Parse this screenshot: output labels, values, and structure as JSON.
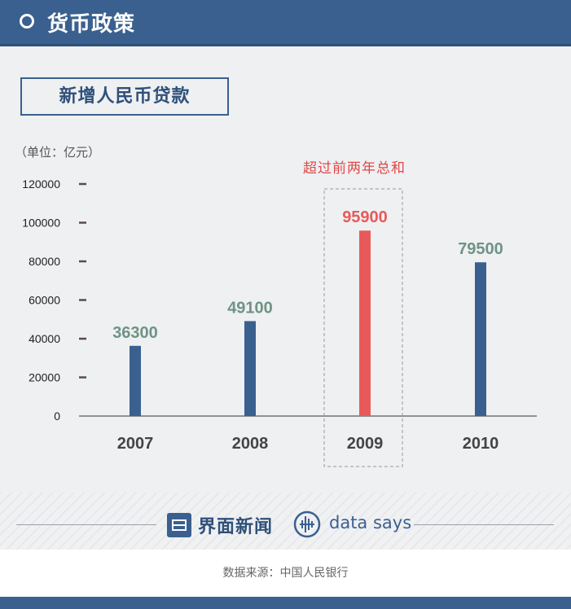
{
  "header": {
    "title": "货币政策"
  },
  "chart_data": {
    "type": "bar",
    "title": "新增人民币贷款",
    "unit": "（单位：亿元）",
    "categories": [
      "2007",
      "2008",
      "2009",
      "2010"
    ],
    "values": [
      36300,
      49100,
      95900,
      79500
    ],
    "value_labels": [
      "36300",
      "49100",
      "95900",
      "79500"
    ],
    "ylim": [
      0,
      120000
    ],
    "yticks": [
      "0",
      "20000",
      "40000",
      "60000",
      "80000",
      "100000",
      "120000"
    ],
    "highlight_category": "2009",
    "annotation": "超过前两年总和",
    "colors": {
      "bar": "#3a6090",
      "highlight": "#e85a5a",
      "label": "#6f9384",
      "highlight_label": "#e85a5a",
      "header": "#3a6090"
    },
    "grid": false,
    "legend": "none"
  },
  "footer": {
    "logo_jiemian": "界面新闻",
    "logo_datasays": "data says",
    "source": "数据来源：中国人民银行"
  },
  "icons": [
    "ring-icon",
    "jiemian-logo-icon",
    "datasays-logo-icon"
  ]
}
